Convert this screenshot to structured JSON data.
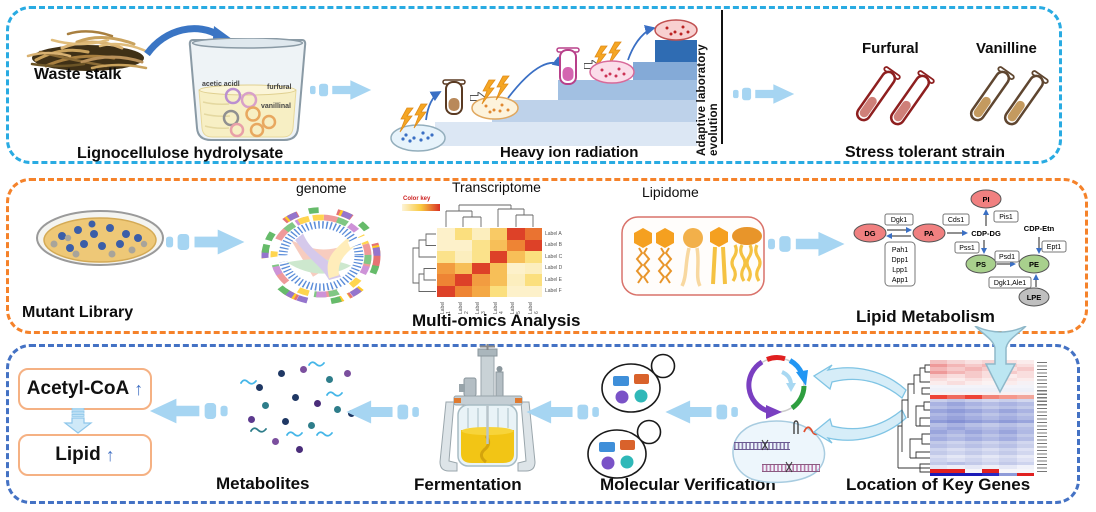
{
  "colors": {
    "panel1_border": "#29ABE2",
    "panel2_border": "#F5822A",
    "panel3_border": "#4472C4",
    "flow_arrow": "#A6D5F2",
    "heat_low": "#FDF4D7",
    "heat_high": "#D93025"
  },
  "panel1": {
    "waste_stalk": "Waste stalk",
    "lignocellulose": "Lignocellulose  hydrolysate",
    "beaker": {
      "acetic": "acetic acidl",
      "furfural": "furfural",
      "vanillinal": "vanillinal"
    },
    "heavy_ion": "Heavy ion radiation",
    "ale": "Adaptive laboratory evolution",
    "furfural_tubes": "Furfural",
    "vanilline_tubes": "Vanilline",
    "stress": "Stress tolerant strain"
  },
  "panel2": {
    "mutant_library": "Mutant Library",
    "genome": "genome",
    "transcriptome": "Transcriptome",
    "lipidome": "Lipidome",
    "multi_omics": "Multi-omics Analysis",
    "lipid_metabolism": "Lipid Metabolism",
    "heatmap": {
      "color_key_label": "Color key",
      "row_labels": [
        "Label A",
        "Label B",
        "Label C",
        "Label D",
        "Label E",
        "Label F"
      ],
      "col_labels": [
        "Label 1",
        "Label 2",
        "Label 3",
        "Label 4",
        "Label 5",
        "Label 6"
      ],
      "values": [
        [
          0.05,
          0.35,
          0.1,
          0.45,
          0.95,
          0.8
        ],
        [
          0.05,
          0.05,
          0.3,
          0.5,
          0.75,
          0.95
        ],
        [
          0.3,
          0.1,
          0.3,
          0.95,
          0.5,
          0.35
        ],
        [
          0.65,
          0.5,
          0.95,
          0.5,
          0.05,
          0.1
        ],
        [
          0.75,
          0.95,
          0.65,
          0.5,
          0.1,
          0.35
        ],
        [
          0.95,
          0.75,
          0.6,
          0.35,
          0.05,
          0.05
        ]
      ]
    },
    "pathway": {
      "dg": "DG",
      "pa": "PA",
      "pi": "PI",
      "ps": "PS",
      "pe": "PE",
      "lpe": "LPE",
      "cdp_dg": "CDP-DG",
      "cdp_etn": "CDP-Etn",
      "dgk1": "Dgk1",
      "cds1": "Cds1",
      "pis1": "Pis1",
      "pss1": "Pss1",
      "psd1": "Psd1",
      "ept1": "Ept1",
      "dgk1_ale1": "Dgk1,Ale1",
      "pah_box": [
        "Pah1",
        "Dpp1",
        "Lpp1",
        "App1"
      ]
    }
  },
  "panel3": {
    "acetyl": "Acetyl-CoA",
    "acetyl_arrow": "↑",
    "lipid": "Lipid",
    "lipid_arrow": "↑",
    "metabolites_label": "Metabolites",
    "fermentation": "Fermentation",
    "molecular": "Molecular Verification",
    "location": "Location of Key Genes",
    "metabolites": {
      "dots": [
        [
          62,
          6,
          "#7b4f9e"
        ],
        [
          18,
          24,
          "#1f3864"
        ],
        [
          88,
          16,
          "#2e7d8a"
        ],
        [
          106,
          10,
          "#7b4f9e"
        ],
        [
          24,
          42,
          "#2e7d8a"
        ],
        [
          54,
          34,
          "#1f3864"
        ],
        [
          76,
          40,
          "#4a2d7a"
        ],
        [
          96,
          46,
          "#2e7d8a"
        ],
        [
          110,
          50,
          "#1f3864"
        ],
        [
          10,
          56,
          "#5c3a8e"
        ],
        [
          44,
          58,
          "#1f3864"
        ],
        [
          70,
          62,
          "#2e7d8a"
        ],
        [
          34,
          78,
          "#7b4f9e"
        ],
        [
          58,
          86,
          "#4a2d7a"
        ],
        [
          40,
          10,
          "#1f3864"
        ]
      ],
      "squiggles": [
        [
          2,
          18,
          "#45b6e8"
        ],
        [
          70,
          0,
          "#45b6e8"
        ],
        [
          88,
          30,
          "#45b6e8"
        ],
        [
          12,
          66,
          "#2e7d8a"
        ],
        [
          48,
          70,
          "#45b6e8"
        ],
        [
          78,
          70,
          "#45b6e8"
        ]
      ]
    },
    "gene_heatmap_rows": [
      [
        "#f3c1c1",
        "#f6d5d5",
        "#f9e2e2",
        "#f6d5d5",
        "#f9e2e2",
        "#fbecec"
      ],
      [
        "#ee9a9a",
        "#f3b6b6",
        "#f6caca",
        "#f3b6b6",
        "#f6caca",
        "#f9dede"
      ],
      [
        "#f3b6b6",
        "#f6caca",
        "#f3b6b6",
        "#f6caca",
        "#f9dede",
        "#f6caca"
      ],
      [
        "#ee9a9a",
        "#f3b6b6",
        "#f6caca",
        "#f9dede",
        "#f6caca",
        "#f9dede"
      ],
      [
        "#f6caca",
        "#f9dede",
        "#f6caca",
        "#f9dede",
        "#fbecec",
        "#f9dede"
      ],
      [
        "#f9dede",
        "#fbecec",
        "#f9dede",
        "#fbecec",
        "#f9e2e2",
        "#fbecec"
      ],
      [
        "#fbecec",
        "#f9dede",
        "#fbecec",
        "#fbf3f3",
        "#fbecec",
        "#f6f1f5"
      ],
      [
        "#f3f3f9"
      ],
      [
        "#eef0f8"
      ],
      [
        "#f8f0f2"
      ],
      [
        "#ee4437",
        "#f06a5e",
        "#ee4437",
        "#f28478",
        "#f5988c",
        "#f2a79c"
      ],
      [
        "#c9cfeb",
        "#bdc5e7",
        "#c9cfeb",
        "#d2d7ef",
        "#c9cfeb",
        "#d2d7ef"
      ],
      [
        "#aab3e2",
        "#9aa5dc",
        "#aab3e2",
        "#b5bde5",
        "#aab3e2",
        "#b5bde5"
      ],
      [
        "#b8c0e6",
        "#aab3e2",
        "#b8c0e6",
        "#c3cae9",
        "#b8c0e6",
        "#c3cae9"
      ],
      [
        "#9aa5dc",
        "#8f9bd8",
        "#9aa5dc",
        "#aab3e2",
        "#9aa5dc",
        "#aab3e2"
      ],
      [
        "#b0b9e4",
        "#a3ade0",
        "#b0b9e4",
        "#bdc5e7",
        "#b0b9e4",
        "#bdc5e7"
      ],
      [
        "#a3ade0",
        "#96a1da",
        "#a3ade0",
        "#b0b9e4",
        "#a3ade0",
        "#b0b9e4"
      ],
      [
        "#8f9bd8",
        "#8591d4",
        "#8f9bd8",
        "#9aa5dc",
        "#8f9bd8",
        "#9aa5dc"
      ],
      [
        "#b8c0e6",
        "#aab3e2",
        "#b8c0e6",
        "#c3cae9",
        "#b8c0e6",
        "#c3cae9"
      ],
      [
        "#aab3e2",
        "#9aa5dc",
        "#aab3e2",
        "#b5bde5",
        "#aab3e2",
        "#b5bde5"
      ],
      [
        "#9aa5dc",
        "#aab3e2",
        "#9aa5dc",
        "#aab3e2",
        "#9aa5dc",
        "#b0b9e4"
      ],
      [
        "#b0b9e4",
        "#bdc5e7",
        "#b0b9e4",
        "#bdc5e7",
        "#b0b9e4",
        "#c3cae9"
      ],
      [
        "#a3ade0",
        "#b0b9e4",
        "#a3ade0",
        "#b0b9e4",
        "#a3ade0",
        "#b5bde5"
      ],
      [
        "#c3cae9",
        "#ced4ee",
        "#c3cae9",
        "#ced4ee",
        "#c3cae9",
        "#d2d7ef"
      ],
      [
        "#b8c0e6",
        "#c3cae9",
        "#b8c0e6",
        "#c3cae9",
        "#b8c0e6",
        "#c9cfeb"
      ],
      [
        "#ced4ee",
        "#dadef2",
        "#ced4ee",
        "#dadef2",
        "#ced4ee",
        "#dee1f4"
      ],
      [
        "#c3cae9",
        "#ced4ee",
        "#c3cae9",
        "#ced4ee",
        "#c3cae9",
        "#d2d7ef"
      ],
      [
        "#dadef2",
        "#e5e8f6",
        "#dadef2",
        "#e5e8f6",
        "#dadef2",
        "#e8eaf7"
      ],
      [
        "#ced4ee",
        "#dadef2",
        "#ced4ee",
        "#dadef2",
        "#ced4ee",
        "#dee1f4"
      ],
      [
        "#c3cae9",
        "#b8c0e6",
        "#c3cae9",
        "#ced4ee",
        "#c3cae9",
        "#ced4ee"
      ],
      [
        "#e5e8f6",
        "#eef0f8",
        "#e5e8f6",
        "#eef0f8",
        "#e5e8f6",
        "#f1f2fa"
      ],
      [
        "#e02020",
        "#e02020",
        "#f6f6fa",
        "#e02020",
        "#f6f6fa",
        "#f6f6fa"
      ],
      [
        "#1a1ab8",
        "#1a1ab8",
        "#1a1ab8",
        "#2a2ac4",
        "#8f9bd8",
        "#e02020"
      ]
    ]
  }
}
